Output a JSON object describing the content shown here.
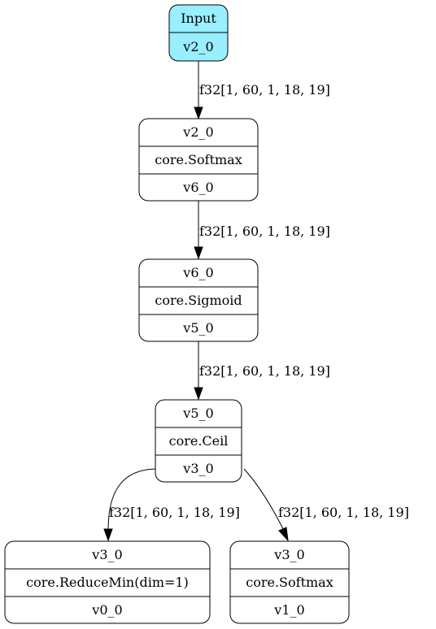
{
  "graph": {
    "input": {
      "title": "Input",
      "output": "v2_0"
    },
    "nodes": [
      {
        "id": "softmax1",
        "input": "v2_0",
        "op": "core.Softmax",
        "output": "v6_0"
      },
      {
        "id": "sigmoid",
        "input": "v6_0",
        "op": "core.Sigmoid",
        "output": "v5_0"
      },
      {
        "id": "ceil",
        "input": "v5_0",
        "op": "core.Ceil",
        "output": "v3_0"
      },
      {
        "id": "reducemin",
        "input": "v3_0",
        "op": "core.ReduceMin(dim=1)",
        "output": "v0_0"
      },
      {
        "id": "softmax2",
        "input": "v3_0",
        "op": "core.Softmax",
        "output": "v1_0"
      }
    ],
    "edges": [
      {
        "from": "input",
        "to": "softmax1",
        "label": "f32[1, 60, 1, 18, 19]"
      },
      {
        "from": "softmax1",
        "to": "sigmoid",
        "label": "f32[1, 60, 1, 18, 19]"
      },
      {
        "from": "sigmoid",
        "to": "ceil",
        "label": "f32[1, 60, 1, 18, 19]"
      },
      {
        "from": "ceil",
        "to": "reducemin",
        "label": "f32[1, 60, 1, 18, 19]"
      },
      {
        "from": "ceil",
        "to": "softmax2",
        "label": "f32[1, 60, 1, 18, 19]"
      }
    ]
  }
}
